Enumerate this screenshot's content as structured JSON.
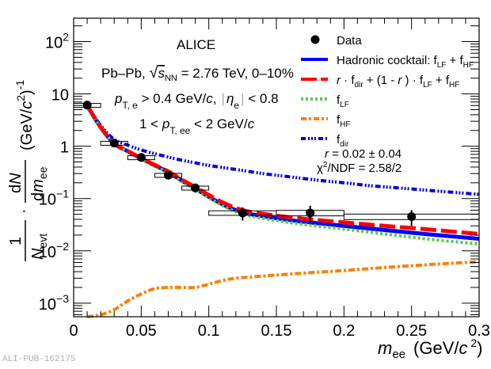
{
  "chart_data": {
    "type": "scatter",
    "title": "ALICE",
    "xlabel": "m_ee (GeV/c²)",
    "ylabel": "1/N_evt · dN/dm_ee (GeV/c²)⁻¹",
    "xlim": [
      0,
      0.3
    ],
    "ylim": [
      0.00055,
      280
    ],
    "yscale": "log",
    "x_ticks": [
      "0",
      "0.05",
      "0.1",
      "0.15",
      "0.2",
      "0.25",
      "0.3"
    ],
    "x_tick_values": [
      0,
      0.05,
      0.1,
      0.15,
      0.2,
      0.25,
      0.3
    ],
    "y_ticks": [
      {
        "value": 100,
        "base": "10",
        "exp": "2"
      },
      {
        "value": 10,
        "base": "10",
        "exp": ""
      },
      {
        "value": 1,
        "base": "1",
        "exp": ""
      },
      {
        "value": 0.1,
        "base": "10",
        "exp": "−1"
      },
      {
        "value": 0.01,
        "base": "10",
        "exp": "−2"
      },
      {
        "value": 0.001,
        "base": "10",
        "exp": "−3"
      }
    ],
    "annotations": {
      "experiment": "ALICE",
      "system_prefix": "Pb–Pb, ",
      "system_sqrt": "s",
      "system_sqrt_sub": "NN",
      "system_rest": " = 2.76 TeV, 0–10%",
      "cut1_p": "p",
      "cut1_sub": "T, e",
      "cut1_rest": " > 0.4 GeV/",
      "cut1_c": "c",
      "cut1_comma": ",",
      "cut1_eta": "η",
      "cut1_eta_sub": "e",
      "cut1_eta_rest": " < 0.8",
      "cut2_pre": "1 < ",
      "cut2_p": "p",
      "cut2_sub": "T, ee",
      "cut2_rest": " < 2 GeV/",
      "cut2_c": "c",
      "fit_r": "r",
      "fit_r_rest": " = 0.02 ± 0.04",
      "fit_chi": "χ",
      "fit_chi_rest": "/NDF = 2.58/2"
    },
    "legend": {
      "placement": "top-right",
      "entries": [
        {
          "label": "Data",
          "style": "marker"
        },
        {
          "label": "Hadronic cocktail: f_LF + f_HF",
          "style": "solid",
          "color": "#0000ff"
        },
        {
          "label": "r · f_dir + (1 - r) · f_LF + f_HF",
          "style": "dashed",
          "color": "#ff0000"
        },
        {
          "label": "f_LF",
          "style": "dotted",
          "color": "#55cc44"
        },
        {
          "label": "f_HF",
          "style": "dashdot",
          "color": "#ff7f00"
        },
        {
          "label": "f_dir",
          "style": "dashdotdot",
          "color": "#0000dd"
        }
      ]
    },
    "series": [
      {
        "name": "Data",
        "type": "points",
        "x": [
          0.01,
          0.03,
          0.05,
          0.07,
          0.09,
          0.125,
          0.175,
          0.25
        ],
        "y": [
          6.1,
          1.15,
          0.61,
          0.28,
          0.16,
          0.053,
          0.053,
          0.045
        ],
        "stat_err_up": [
          0.3,
          0.08,
          0.05,
          0.04,
          0.03,
          0.015,
          0.02,
          0.015
        ],
        "stat_err_down": [
          0.3,
          0.08,
          0.05,
          0.04,
          0.03,
          0.015,
          0.02,
          0.015
        ],
        "sys_box_xlo": [
          0.0,
          0.02,
          0.04,
          0.06,
          0.08,
          0.1,
          0.15,
          0.2
        ],
        "sys_box_xhi": [
          0.02,
          0.04,
          0.06,
          0.08,
          0.1,
          0.15,
          0.2,
          0.3
        ],
        "sys_rel": [
          0.08,
          0.08,
          0.08,
          0.08,
          0.08,
          0.1,
          0.12,
          0.12
        ]
      },
      {
        "name": "Hadronic cocktail: f_LF + f_HF",
        "color": "#0000ff",
        "x": [
          0.01,
          0.02,
          0.03,
          0.04,
          0.05,
          0.06,
          0.07,
          0.08,
          0.09,
          0.1,
          0.11,
          0.12,
          0.13,
          0.14,
          0.15,
          0.17,
          0.2,
          0.23,
          0.26,
          0.3
        ],
        "y": [
          6.0,
          2.3,
          1.12,
          0.8,
          0.58,
          0.43,
          0.32,
          0.22,
          0.155,
          0.108,
          0.078,
          0.06,
          0.051,
          0.046,
          0.042,
          0.036,
          0.03,
          0.025,
          0.021,
          0.017
        ]
      },
      {
        "name": "r · f_dir + (1 - r) · f_LF + f_HF",
        "color": "#ff0000",
        "x": [
          0.01,
          0.02,
          0.03,
          0.04,
          0.05,
          0.06,
          0.07,
          0.08,
          0.09,
          0.1,
          0.11,
          0.12,
          0.13,
          0.14,
          0.15,
          0.17,
          0.2,
          0.23,
          0.26,
          0.3
        ],
        "y": [
          6.0,
          2.3,
          1.13,
          0.81,
          0.59,
          0.44,
          0.33,
          0.23,
          0.165,
          0.117,
          0.085,
          0.066,
          0.056,
          0.051,
          0.047,
          0.041,
          0.035,
          0.03,
          0.026,
          0.021
        ]
      },
      {
        "name": "f_LF",
        "color": "#55cc44",
        "x": [
          0.01,
          0.02,
          0.03,
          0.04,
          0.05,
          0.06,
          0.07,
          0.08,
          0.09,
          0.1,
          0.11,
          0.12,
          0.13,
          0.14,
          0.15,
          0.17,
          0.2,
          0.23,
          0.26,
          0.3
        ],
        "y": [
          6.0,
          2.3,
          1.12,
          0.79,
          0.57,
          0.42,
          0.31,
          0.215,
          0.15,
          0.104,
          0.074,
          0.056,
          0.047,
          0.042,
          0.038,
          0.032,
          0.026,
          0.021,
          0.017,
          0.0135
        ]
      },
      {
        "name": "f_HF",
        "color": "#ff7f00",
        "x": [
          0.01,
          0.02,
          0.03,
          0.04,
          0.05,
          0.06,
          0.07,
          0.08,
          0.09,
          0.1,
          0.11,
          0.12,
          0.14,
          0.16,
          0.18,
          0.2,
          0.22,
          0.24,
          0.26,
          0.28,
          0.3
        ],
        "y": [
          0.00055,
          0.0006,
          0.00075,
          0.0011,
          0.0015,
          0.0019,
          0.002,
          0.002,
          0.002,
          0.0023,
          0.0027,
          0.003,
          0.0033,
          0.0036,
          0.0039,
          0.0042,
          0.0046,
          0.005,
          0.0054,
          0.0058,
          0.0062
        ]
      },
      {
        "name": "f_dir",
        "color": "#0000dd",
        "x": [
          0.01,
          0.02,
          0.03,
          0.04,
          0.05,
          0.06,
          0.07,
          0.08,
          0.09,
          0.1,
          0.12,
          0.14,
          0.16,
          0.18,
          0.2,
          0.22,
          0.24,
          0.26,
          0.28,
          0.3
        ],
        "y": [
          6.0,
          2.5,
          1.35,
          1.05,
          0.85,
          0.72,
          0.62,
          0.54,
          0.48,
          0.43,
          0.36,
          0.3,
          0.26,
          0.225,
          0.2,
          0.175,
          0.16,
          0.145,
          0.132,
          0.12
        ]
      }
    ]
  },
  "watermark": "ALI-PUB-162175"
}
